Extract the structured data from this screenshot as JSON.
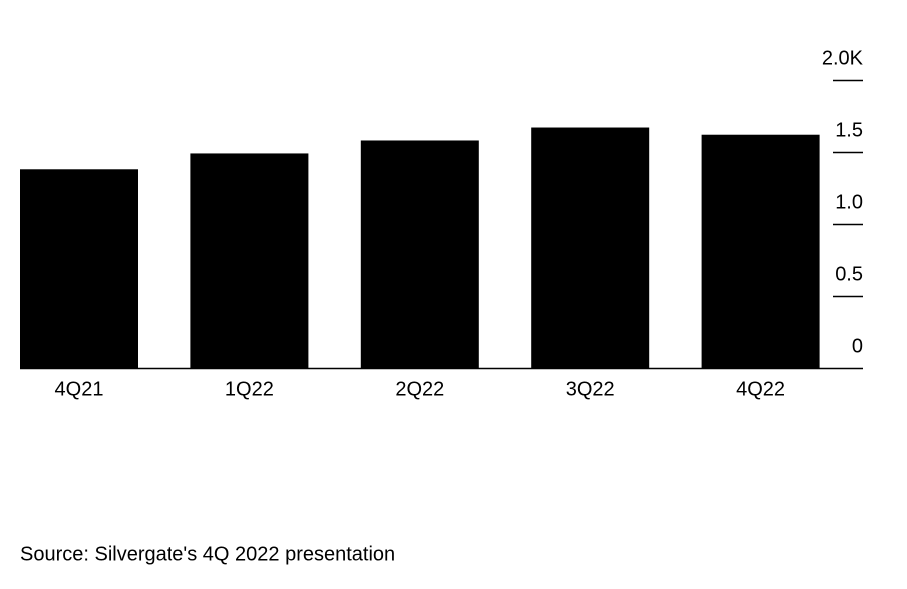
{
  "chart_data": {
    "type": "bar",
    "categories": [
      "4Q21",
      "1Q22",
      "2Q22",
      "3Q22",
      "4Q22"
    ],
    "values": [
      1.38,
      1.49,
      1.58,
      1.67,
      1.62
    ],
    "color": "#000000",
    "ylim": [
      0,
      2
    ],
    "yticks": [
      0,
      0.5,
      {
        "value": 1,
        "label": "1.0"
      },
      1.5,
      {
        "value": 2,
        "label": "2.0K"
      }
    ],
    "source": "Source: Silvergate's 4Q 2022 presentation"
  }
}
